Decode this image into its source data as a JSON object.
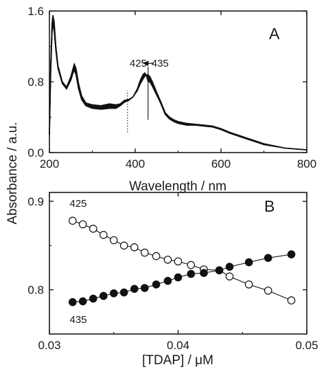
{
  "chart_data": [
    {
      "panel": "A",
      "type": "line",
      "panel_label": "A",
      "xlabel": "Wavelength / nm",
      "ylabel": "Absorbance / a.u.",
      "xlim": [
        200,
        800
      ],
      "ylim": [
        0.0,
        1.6
      ],
      "xticks": [
        200,
        400,
        600,
        800
      ],
      "yticks": [
        0.0,
        0.8,
        1.6
      ],
      "ytick_labels": [
        "0.0",
        "0.8",
        "1.6"
      ],
      "grid": false,
      "annotations": [
        {
          "text": "425",
          "x": 407,
          "y": 0.97
        },
        {
          "text": "435",
          "x": 458,
          "y": 0.97
        },
        {
          "text": "←",
          "kind": "arrow",
          "from": 435,
          "to": 425
        }
      ],
      "series": [
        {
          "x": [
            200,
            203,
            206,
            208,
            211,
            215,
            220,
            230,
            240,
            250,
            255,
            258,
            262,
            268,
            275,
            285,
            300,
            320,
            340,
            355,
            365,
            375,
            385,
            395,
            405,
            412,
            418,
            422,
            426,
            430,
            434,
            440,
            450,
            460,
            470,
            480,
            490,
            500,
            520,
            540,
            560,
            580,
            600,
            620,
            650,
            700,
            750,
            800
          ],
          "y_min": [
            0.2,
            0.9,
            1.35,
            1.45,
            1.38,
            1.15,
            0.95,
            0.78,
            0.72,
            0.82,
            0.9,
            0.93,
            0.88,
            0.72,
            0.6,
            0.53,
            0.5,
            0.49,
            0.5,
            0.5,
            0.53,
            0.57,
            0.59,
            0.63,
            0.72,
            0.82,
            0.88,
            0.9,
            0.87,
            0.8,
            0.8,
            0.75,
            0.65,
            0.55,
            0.43,
            0.38,
            0.35,
            0.33,
            0.31,
            0.31,
            0.3,
            0.29,
            0.26,
            0.22,
            0.17,
            0.09,
            0.05,
            0.03
          ],
          "y_max": [
            0.2,
            1.0,
            1.45,
            1.55,
            1.48,
            1.2,
            0.98,
            0.8,
            0.74,
            0.86,
            0.95,
            1.0,
            0.95,
            0.78,
            0.64,
            0.56,
            0.54,
            0.53,
            0.55,
            0.54,
            0.55,
            0.59,
            0.6,
            0.63,
            0.7,
            0.78,
            0.83,
            0.86,
            0.88,
            0.88,
            0.86,
            0.8,
            0.68,
            0.57,
            0.45,
            0.4,
            0.37,
            0.35,
            0.33,
            0.32,
            0.31,
            0.3,
            0.27,
            0.23,
            0.18,
            0.1,
            0.05,
            0.03
          ]
        }
      ],
      "markers": [
        {
          "kind": "solid-vertical",
          "x": 430,
          "y_from": 0.37,
          "y_to": 0.97
        },
        {
          "kind": "dotted-vertical",
          "x": 382,
          "y_from": 0.23,
          "y_to": 0.7
        }
      ]
    },
    {
      "panel": "B",
      "type": "scatter",
      "panel_label": "B",
      "xlabel": "[TDAP] / μM",
      "xlim": [
        0.03,
        0.05
      ],
      "ylim": [
        0.75,
        0.91
      ],
      "xticks": [
        0.03,
        0.04,
        0.05
      ],
      "xtick_labels": [
        "0.03",
        "0.04",
        "0.05"
      ],
      "yticks": [
        0.8,
        0.9
      ],
      "ytick_labels": [
        "0.8",
        "0.9"
      ],
      "grid": false,
      "series": [
        {
          "name": "425",
          "marker": "open-circle",
          "x": [
            0.0318,
            0.0326,
            0.0334,
            0.0342,
            0.035,
            0.0358,
            0.0366,
            0.0374,
            0.0383,
            0.0392,
            0.04,
            0.041,
            0.042,
            0.0432,
            0.044,
            0.0455,
            0.047,
            0.0488
          ],
          "y": [
            0.878,
            0.874,
            0.869,
            0.862,
            0.856,
            0.85,
            0.848,
            0.842,
            0.838,
            0.834,
            0.832,
            0.828,
            0.823,
            0.822,
            0.815,
            0.806,
            0.799,
            0.788
          ]
        },
        {
          "name": "435",
          "marker": "filled-circle",
          "x": [
            0.0318,
            0.0326,
            0.0334,
            0.0342,
            0.035,
            0.0358,
            0.0366,
            0.0374,
            0.0383,
            0.0392,
            0.04,
            0.041,
            0.042,
            0.0432,
            0.044,
            0.0455,
            0.047,
            0.0488
          ],
          "y": [
            0.786,
            0.787,
            0.79,
            0.793,
            0.796,
            0.797,
            0.801,
            0.802,
            0.806,
            0.81,
            0.814,
            0.818,
            0.819,
            0.822,
            0.826,
            0.831,
            0.836,
            0.84
          ]
        }
      ]
    }
  ]
}
